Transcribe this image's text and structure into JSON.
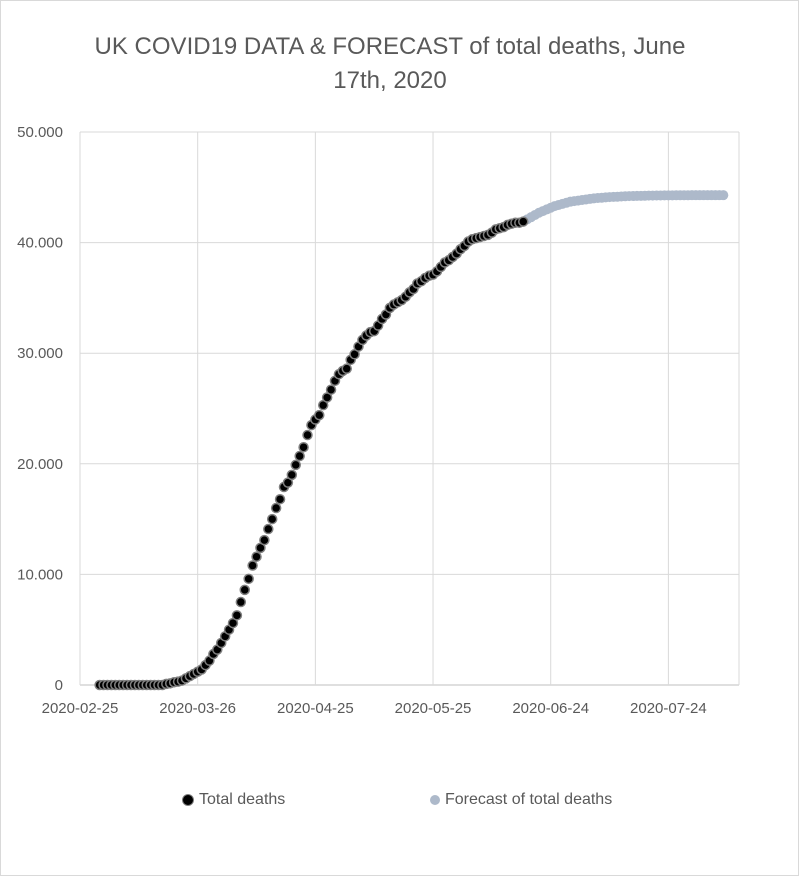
{
  "chart_data": {
    "type": "scatter",
    "title_line1": "UK COVID19 DATA & FORECAST of total deaths, June",
    "title_line2": "17th, 2020",
    "xlabel": "",
    "ylabel": "",
    "x_ticks": [
      "2020-02-25",
      "2020-03-26",
      "2020-04-25",
      "2020-05-25",
      "2020-06-24",
      "2020-07-24"
    ],
    "y_ticks": [
      "0",
      "10.000",
      "20.000",
      "30.000",
      "40.000",
      "50.000"
    ],
    "ylim": [
      0,
      50000
    ],
    "xlim": [
      "2020-02-25",
      "2020-08-11"
    ],
    "grid": true,
    "legend_position": "bottom",
    "colors": {
      "total": "#000000",
      "total_edge": "#7f7f7f",
      "forecast": "#adb9ca",
      "grid": "#d9d9d9",
      "text": "#595959"
    },
    "series": [
      {
        "name": "Total deaths",
        "x": [
          "2020-03-01",
          "2020-03-02",
          "2020-03-03",
          "2020-03-04",
          "2020-03-05",
          "2020-03-06",
          "2020-03-07",
          "2020-03-08",
          "2020-03-09",
          "2020-03-10",
          "2020-03-11",
          "2020-03-12",
          "2020-03-13",
          "2020-03-14",
          "2020-03-15",
          "2020-03-16",
          "2020-03-17",
          "2020-03-18",
          "2020-03-19",
          "2020-03-20",
          "2020-03-21",
          "2020-03-22",
          "2020-03-23",
          "2020-03-24",
          "2020-03-25",
          "2020-03-26",
          "2020-03-27",
          "2020-03-28",
          "2020-03-29",
          "2020-03-30",
          "2020-03-31",
          "2020-04-01",
          "2020-04-02",
          "2020-04-03",
          "2020-04-04",
          "2020-04-05",
          "2020-04-06",
          "2020-04-07",
          "2020-04-08",
          "2020-04-09",
          "2020-04-10",
          "2020-04-11",
          "2020-04-12",
          "2020-04-13",
          "2020-04-14",
          "2020-04-15",
          "2020-04-16",
          "2020-04-17",
          "2020-04-18",
          "2020-04-19",
          "2020-04-20",
          "2020-04-21",
          "2020-04-22",
          "2020-04-23",
          "2020-04-24",
          "2020-04-25",
          "2020-04-26",
          "2020-04-27",
          "2020-04-28",
          "2020-04-29",
          "2020-04-30",
          "2020-05-01",
          "2020-05-02",
          "2020-05-03",
          "2020-05-04",
          "2020-05-05",
          "2020-05-06",
          "2020-05-07",
          "2020-05-08",
          "2020-05-09",
          "2020-05-10",
          "2020-05-11",
          "2020-05-12",
          "2020-05-13",
          "2020-05-14",
          "2020-05-15",
          "2020-05-16",
          "2020-05-17",
          "2020-05-18",
          "2020-05-19",
          "2020-05-20",
          "2020-05-21",
          "2020-05-22",
          "2020-05-23",
          "2020-05-24",
          "2020-05-25",
          "2020-05-26",
          "2020-05-27",
          "2020-05-28",
          "2020-05-29",
          "2020-05-30",
          "2020-05-31",
          "2020-06-01",
          "2020-06-02",
          "2020-06-03",
          "2020-06-04",
          "2020-06-05",
          "2020-06-06",
          "2020-06-07",
          "2020-06-08",
          "2020-06-09",
          "2020-06-10",
          "2020-06-11",
          "2020-06-12",
          "2020-06-13",
          "2020-06-14",
          "2020-06-15",
          "2020-06-16",
          "2020-06-17"
        ],
        "values": [
          0,
          0,
          0,
          0,
          0,
          0,
          0,
          0,
          0,
          0,
          0,
          0,
          0,
          0,
          0,
          0,
          0,
          100,
          150,
          250,
          300,
          400,
          600,
          800,
          1000,
          1200,
          1400,
          1800,
          2200,
          2800,
          3200,
          3800,
          4400,
          5000,
          5600,
          6300,
          7500,
          8600,
          9600,
          10800,
          11600,
          12400,
          13100,
          14100,
          15000,
          16000,
          16800,
          17900,
          18300,
          19000,
          19900,
          20700,
          21500,
          22600,
          23500,
          24000,
          24400,
          25300,
          26000,
          26700,
          27500,
          28100,
          28400,
          28600,
          29400,
          29900,
          30600,
          31200,
          31600,
          31900,
          32000,
          32500,
          33100,
          33500,
          34100,
          34400,
          34600,
          34800,
          35100,
          35500,
          35800,
          36300,
          36500,
          36800,
          37000,
          37100,
          37400,
          37800,
          38200,
          38400,
          38700,
          39000,
          39400,
          39700,
          40100,
          40300,
          40400,
          40500,
          40600,
          40700,
          40900,
          41200,
          41300,
          41400,
          41600,
          41700,
          41800,
          41800,
          41900
        ]
      },
      {
        "name": "Forecast of total deaths",
        "x": [
          "2020-06-17",
          "2020-06-18",
          "2020-06-19",
          "2020-06-20",
          "2020-06-21",
          "2020-06-22",
          "2020-06-23",
          "2020-06-24",
          "2020-06-25",
          "2020-06-26",
          "2020-06-27",
          "2020-06-28",
          "2020-06-29",
          "2020-06-30",
          "2020-07-01",
          "2020-07-02",
          "2020-07-03",
          "2020-07-04",
          "2020-07-05",
          "2020-07-06",
          "2020-07-07",
          "2020-07-08",
          "2020-07-09",
          "2020-07-10",
          "2020-07-11",
          "2020-07-12",
          "2020-07-13",
          "2020-07-14",
          "2020-07-15",
          "2020-07-16",
          "2020-07-17",
          "2020-07-18",
          "2020-07-19",
          "2020-07-20",
          "2020-07-21",
          "2020-07-22",
          "2020-07-23",
          "2020-07-24",
          "2020-07-25",
          "2020-07-26",
          "2020-07-27",
          "2020-07-28",
          "2020-07-29",
          "2020-07-30",
          "2020-07-31",
          "2020-08-01",
          "2020-08-02",
          "2020-08-03",
          "2020-08-04",
          "2020-08-05",
          "2020-08-06",
          "2020-08-07"
        ],
        "values": [
          41900,
          42100,
          42300,
          42500,
          42700,
          42850,
          43000,
          43150,
          43300,
          43400,
          43500,
          43600,
          43700,
          43750,
          43800,
          43850,
          43900,
          43950,
          44000,
          44030,
          44060,
          44090,
          44110,
          44130,
          44150,
          44170,
          44190,
          44200,
          44210,
          44220,
          44230,
          44240,
          44250,
          44250,
          44260,
          44260,
          44270,
          44270,
          44270,
          44280,
          44280,
          44280,
          44280,
          44290,
          44290,
          44290,
          44290,
          44290,
          44290,
          44290,
          44290,
          44290
        ]
      }
    ]
  }
}
